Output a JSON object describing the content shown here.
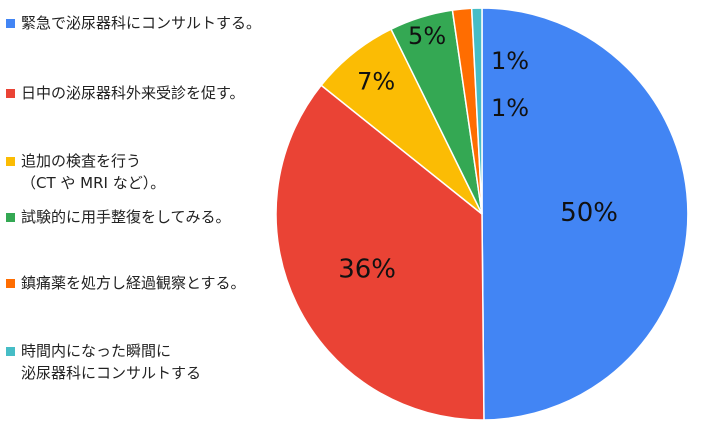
{
  "chart_data": {
    "type": "pie",
    "title": "",
    "legend_position": "left",
    "start_angle": "top",
    "direction": "clockwise",
    "slices": [
      {
        "label": "緊急で泌尿器科にコンサルトする。",
        "value": 50,
        "display": "50%",
        "color": "#4285f4"
      },
      {
        "label": "日中の泌尿器科外来受診を促す。",
        "value": 36,
        "display": "36%",
        "color": "#ea4335"
      },
      {
        "label": "追加の検査を行う\n（CT や MRI など）。",
        "value": 7,
        "display": "7%",
        "color": "#fbbc04"
      },
      {
        "label": "試験的に用手整復をしてみる。",
        "value": 5,
        "display": "5%",
        "color": "#34a853"
      },
      {
        "label": "鎮痛薬を処方し経過観察とする。",
        "value": 1.5,
        "display": "",
        "color": "#ff6d01"
      },
      {
        "label": "時間内になった瞬間に\n泌尿器科にコンサルトする",
        "value": 0.8,
        "display": "",
        "color": "#46bdc6"
      }
    ],
    "outside_labels": [
      "1%",
      "1%"
    ]
  }
}
